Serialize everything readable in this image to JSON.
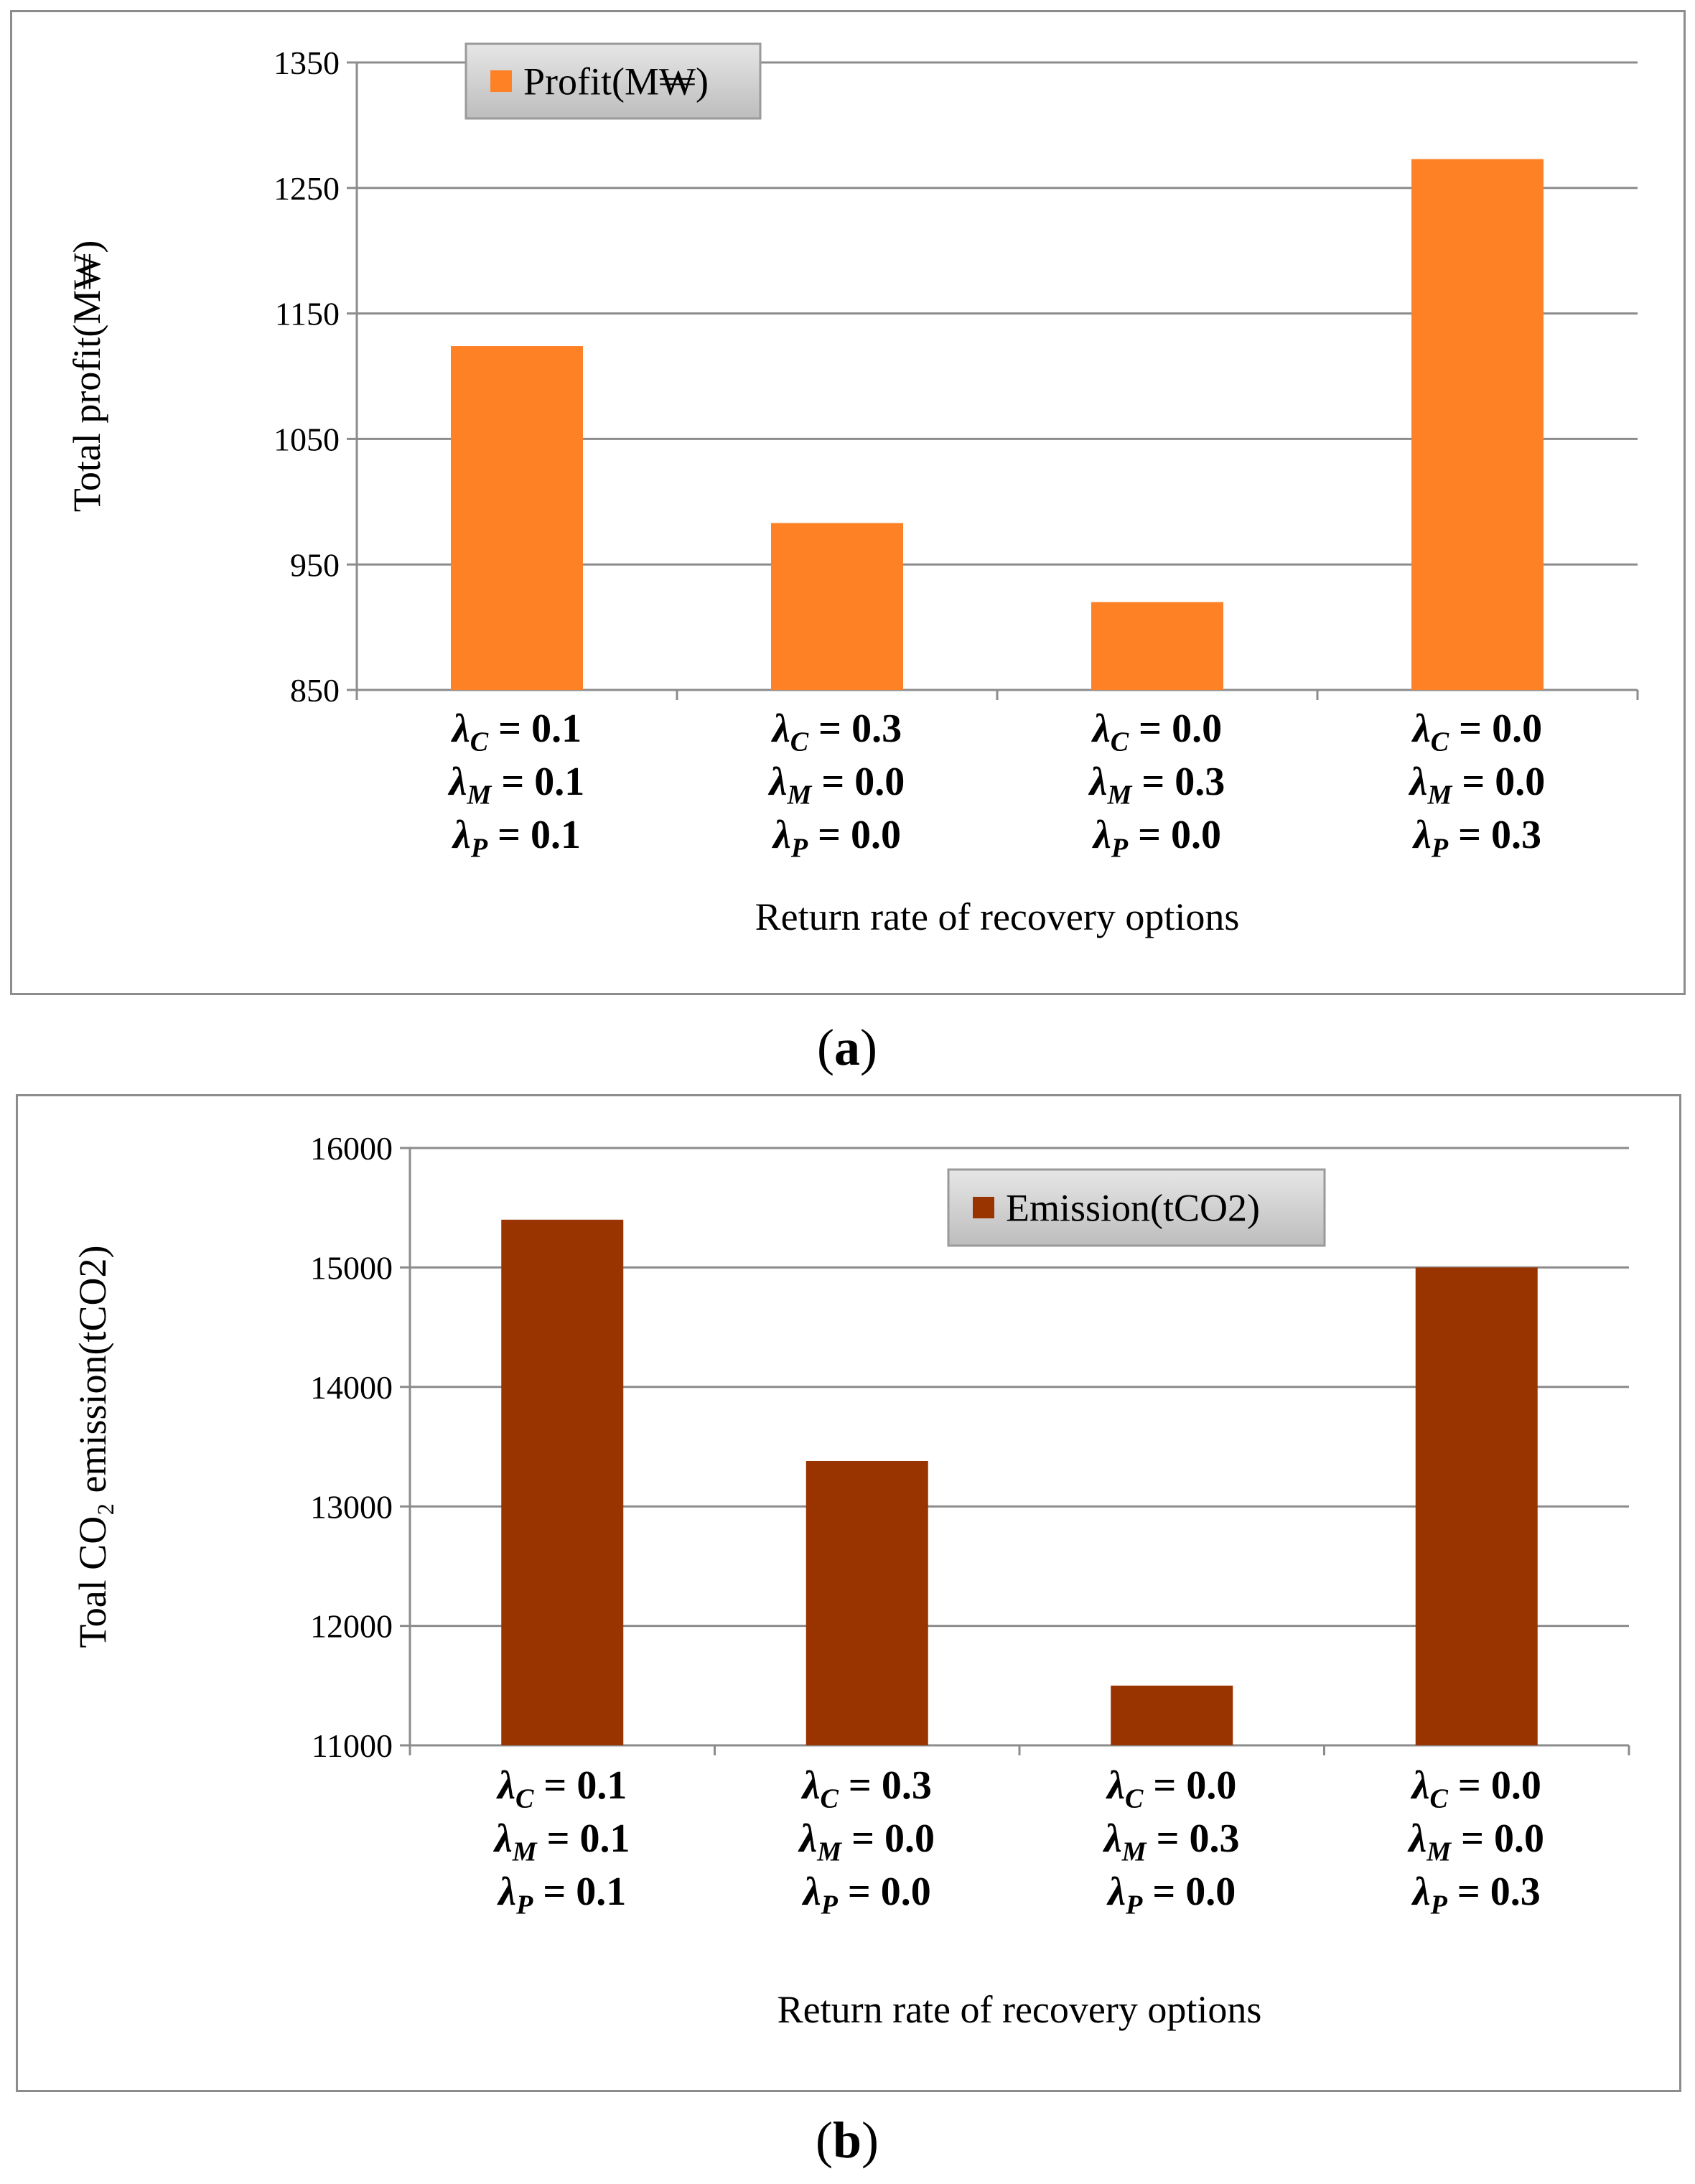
{
  "chart_data": [
    {
      "id": "a",
      "type": "bar",
      "caption_open": "(",
      "caption_letter": "a",
      "caption_close": ")",
      "ylabel": "Total profit(M₩)",
      "xlabel": "Return rate of recovery options",
      "legend": "Profit(M₩)",
      "legend_placement": "top-left",
      "color": "#FF8126",
      "ylim": [
        850,
        1350
      ],
      "yticks": [
        "850",
        "950",
        "1050",
        "1150",
        "1250",
        "1350"
      ],
      "categories": [
        [
          "λC = 0.1",
          "λM = 0.1",
          "λP = 0.1"
        ],
        [
          "λC = 0.3",
          "λM = 0.0",
          "λP = 0.0"
        ],
        [
          "λC = 0.0",
          "λM = 0.3",
          "λP = 0.0"
        ],
        [
          "λC = 0.0",
          "λM = 0.0",
          "λP = 0.3"
        ]
      ],
      "values": [
        1124,
        983,
        920,
        1273
      ]
    },
    {
      "id": "b",
      "type": "bar",
      "caption_open": "(",
      "caption_letter": "b",
      "caption_close": ")",
      "ylabel": "Toal CO₂ emission(tCO2)",
      "xlabel": "Return rate of recovery options",
      "legend": "Emission(tCO2)",
      "legend_placement": "top-right",
      "color": "#993300",
      "ylim": [
        11000,
        16000
      ],
      "yticks": [
        "11000",
        "12000",
        "13000",
        "14000",
        "15000",
        "16000"
      ],
      "categories": [
        [
          "λC = 0.1",
          "λM = 0.1",
          "λP = 0.1"
        ],
        [
          "λC = 0.3",
          "λM = 0.0",
          "λP = 0.0"
        ],
        [
          "λC = 0.0",
          "λM = 0.3",
          "λP = 0.0"
        ],
        [
          "λC = 0.0",
          "λM = 0.0",
          "λP = 0.3"
        ]
      ],
      "values": [
        15400,
        13380,
        11500,
        15000
      ]
    }
  ]
}
